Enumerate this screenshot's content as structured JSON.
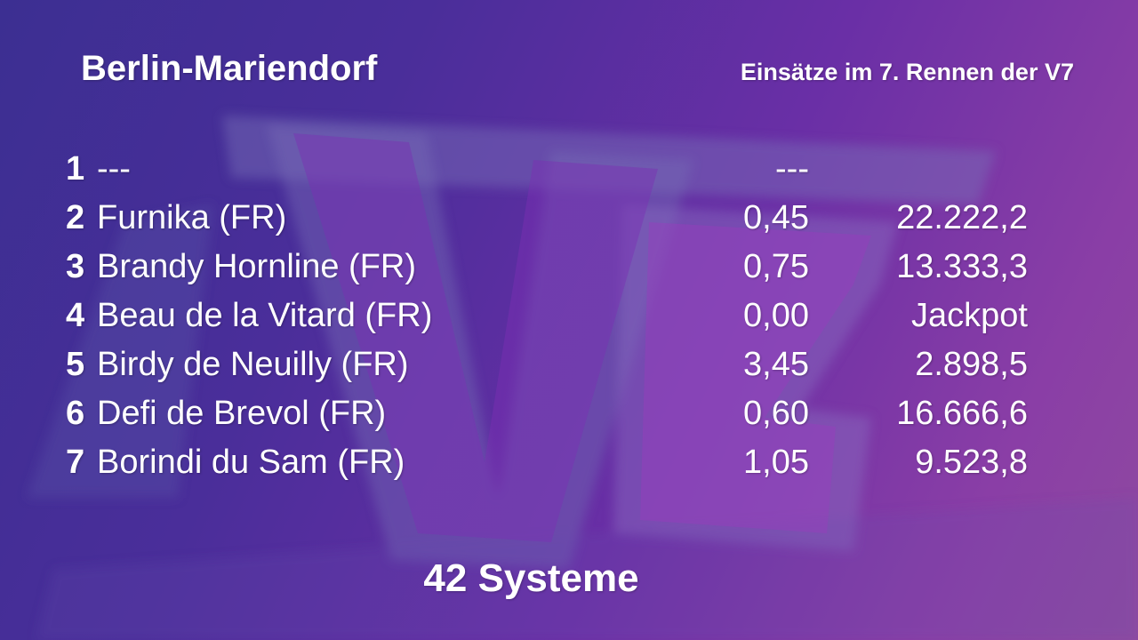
{
  "header": {
    "track_name": "Berlin-Mariendorf",
    "race_info": "Einsätze im 7. Rennen der V7"
  },
  "runners": [
    {
      "number": "1",
      "name": "---",
      "stake": "---",
      "quote": ""
    },
    {
      "number": "2",
      "name": "Furnika (FR)",
      "stake": "0,45",
      "quote": "22.222,2"
    },
    {
      "number": "3",
      "name": "Brandy Hornline (FR)",
      "stake": "0,75",
      "quote": "13.333,3"
    },
    {
      "number": "4",
      "name": "Beau de la Vitard (FR)",
      "stake": "0,00",
      "quote": "Jackpot"
    },
    {
      "number": "5",
      "name": "Birdy de Neuilly (FR)",
      "stake": "3,45",
      "quote": "2.898,5"
    },
    {
      "number": "6",
      "name": "Defi de Brevol (FR)",
      "stake": "0,60",
      "quote": "16.666,6"
    },
    {
      "number": "7",
      "name": "Borindi du Sam (FR)",
      "stake": "1,05",
      "quote": "9.523,8"
    }
  ],
  "footer": {
    "systems": "42 Systeme"
  },
  "colors": {
    "background_start": "#3c2f92",
    "background_end": "#8f4aa0",
    "text": "#ffffff"
  },
  "watermark_icon": "v7-logo-watermark"
}
